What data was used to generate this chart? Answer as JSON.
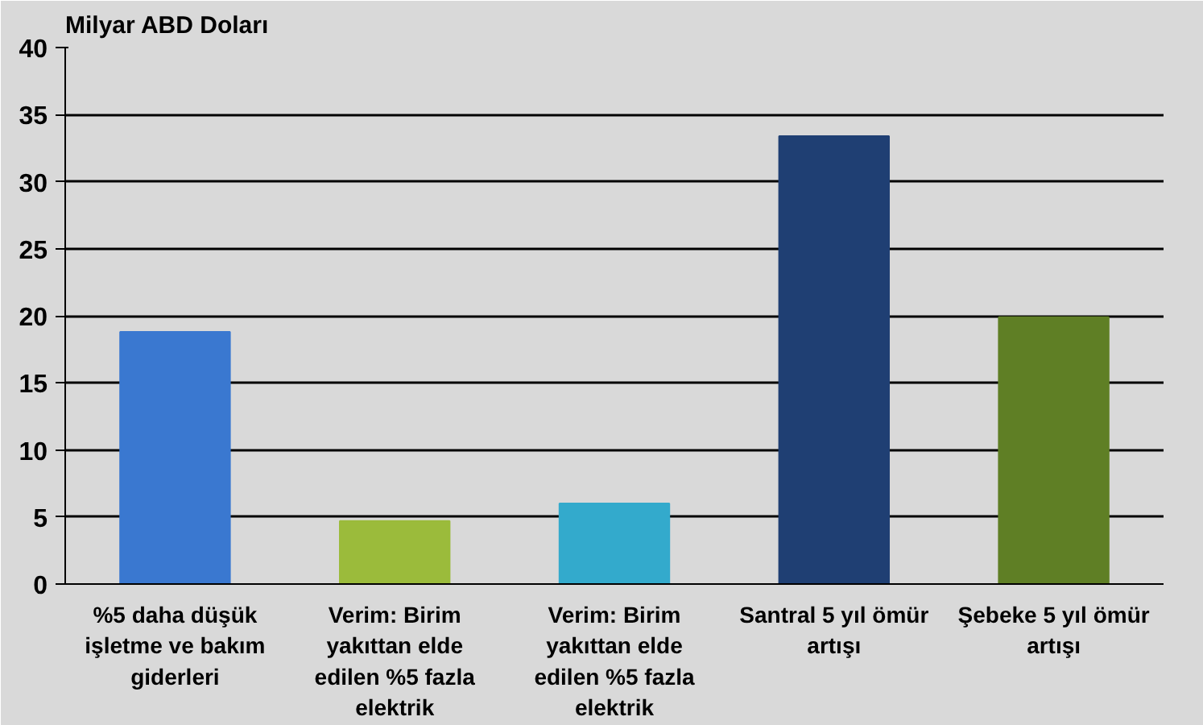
{
  "chart_data": {
    "type": "bar",
    "ylabel": "Milyar ABD Doları",
    "categories": [
      "%5 daha düşük işletme ve bakım giderleri",
      "Verim: Birim yakıttan elde edilen %5 fazla elektrik",
      "Verim: Birim yakıttan elde edilen %5 fazla elektrik",
      "Santral 5 yıl ömür artışı",
      "Şebeke 5 yıl ömür artışı"
    ],
    "values": [
      18.8,
      4.7,
      6.0,
      33.4,
      19.9
    ],
    "colors": [
      "#3a78d0",
      "#9bbb3b",
      "#33aacc",
      "#1f3f73",
      "#5f7f25"
    ],
    "ylim": [
      0,
      40
    ],
    "yticks": [
      0,
      5,
      10,
      15,
      20,
      25,
      30,
      35,
      40
    ],
    "grid": "y"
  }
}
